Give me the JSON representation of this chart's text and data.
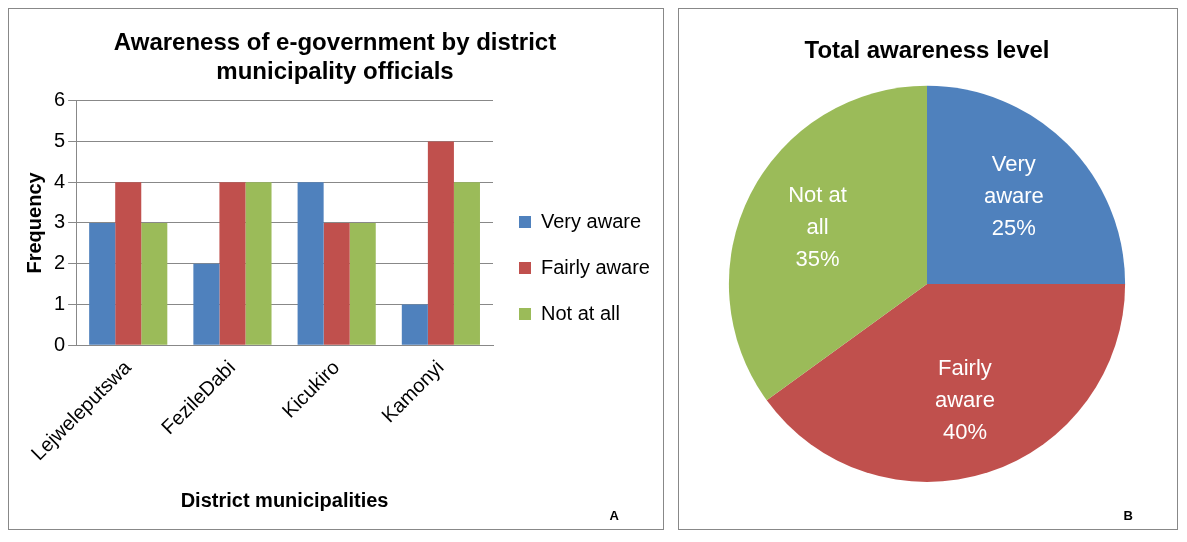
{
  "chart_data": [
    {
      "type": "bar",
      "title": "Awareness of e-government by district municipality officials",
      "xlabel": "District municipalities",
      "ylabel": "Frequency",
      "categories": [
        "Lejweleputswa",
        "FezileDabi",
        "Kicukiro",
        "Kamonyi"
      ],
      "series": [
        {
          "name": "Very aware",
          "color": "#4f81bd",
          "values": [
            3,
            2,
            4,
            1
          ]
        },
        {
          "name": "Fairly aware",
          "color": "#c0504d",
          "values": [
            4,
            4,
            3,
            5
          ]
        },
        {
          "name": "Not at all",
          "color": "#9bbb59",
          "values": [
            3,
            4,
            3,
            4
          ]
        }
      ],
      "ylim": [
        0,
        6
      ],
      "yticks": [
        0,
        1,
        2,
        3,
        4,
        5,
        6
      ],
      "grid": "y",
      "legend": "right",
      "annotations": [
        "A"
      ]
    },
    {
      "type": "pie",
      "title": "Total awareness level",
      "categories": [
        "Very aware",
        "Fairly aware",
        "Not at all"
      ],
      "values": [
        25,
        40,
        35
      ],
      "value_labels": [
        "25%",
        "40%",
        "35%"
      ],
      "colors": [
        "#4f81bd",
        "#c0504d",
        "#9bbb59"
      ],
      "legend": false,
      "annotations": [
        "B"
      ]
    }
  ]
}
